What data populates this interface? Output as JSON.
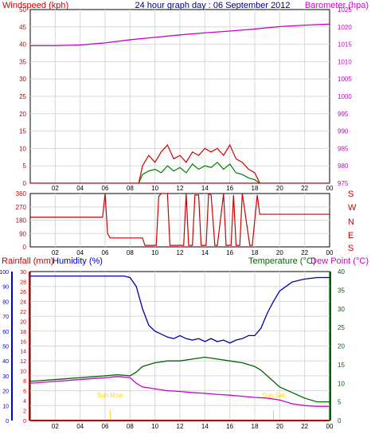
{
  "chart_data": [
    {
      "id": "top",
      "type": "line",
      "title": "24 hour graph day : 06 September 2012",
      "left_axis_label": "Windspeed (kph)",
      "right_axis_label": "Barometer (hpa)",
      "x_ticks": [
        "02",
        "04",
        "06",
        "08",
        "10",
        "12",
        "14",
        "16",
        "18",
        "20",
        "22",
        "00"
      ],
      "left_ylim": [
        0,
        50
      ],
      "left_ticks": [
        "0",
        "5",
        "10",
        "15",
        "20",
        "25",
        "30",
        "35",
        "40",
        "45",
        "50"
      ],
      "right_ylim": [
        975,
        1025
      ],
      "right_ticks": [
        "975",
        "980",
        "985",
        "990",
        "995",
        "1000",
        "1005",
        "1010",
        "1015",
        "1020",
        "1025"
      ],
      "grid": true,
      "series": [
        {
          "role": "barometer",
          "color": "#cc00cc",
          "axis": "right",
          "x": [
            0,
            2,
            4,
            6,
            8,
            10,
            12,
            14,
            16,
            18,
            20,
            22,
            24
          ],
          "y": [
            1014.6,
            1014.6,
            1014.8,
            1015.4,
            1016.3,
            1017.0,
            1017.7,
            1018.3,
            1018.8,
            1019.4,
            1020.1,
            1020.5,
            1020.8
          ]
        },
        {
          "role": "windspeed",
          "color": "#008000",
          "axis": "left",
          "x": [
            8.7,
            9.0,
            9.5,
            10.0,
            10.5,
            11.0,
            11.5,
            12.0,
            12.5,
            13.0,
            13.5,
            14.0,
            14.5,
            15.0,
            15.5,
            16.0,
            16.5,
            17.0,
            17.5,
            18.0,
            18.4
          ],
          "y": [
            0,
            2.5,
            3.5,
            4.0,
            3.0,
            5.0,
            3.5,
            4.5,
            3.0,
            5.5,
            4.0,
            5.0,
            4.5,
            6.0,
            4.0,
            5.5,
            3.0,
            2.5,
            1.5,
            1.0,
            0
          ]
        },
        {
          "role": "gust",
          "color": "#cc0000",
          "axis": "left",
          "x": [
            8.7,
            9.0,
            9.5,
            10.0,
            10.5,
            11.0,
            11.5,
            12.0,
            12.5,
            13.0,
            13.5,
            14.0,
            14.5,
            15.0,
            15.5,
            16.0,
            16.5,
            17.0,
            17.5,
            18.0,
            18.4
          ],
          "y": [
            0,
            5,
            8,
            6,
            9,
            11,
            7,
            8,
            6,
            9,
            8,
            10,
            9,
            10,
            8,
            11,
            7,
            6,
            4,
            3,
            0
          ]
        }
      ]
    },
    {
      "id": "direction",
      "type": "line",
      "x_ticks": [
        "02",
        "04",
        "06",
        "08",
        "10",
        "12",
        "14",
        "16",
        "18",
        "20",
        "22",
        "00"
      ],
      "ylim": [
        0,
        360
      ],
      "left_ticks": [
        "0",
        "90",
        "180",
        "270",
        "360"
      ],
      "right_labels": [
        "S",
        "E",
        "N",
        "W",
        "S"
      ],
      "grid": true,
      "series": [
        {
          "role": "direction",
          "color": "#cc0000",
          "x": [
            0,
            5.8,
            6.0,
            6.2,
            6.4,
            6.7,
            9.0,
            9.2,
            10.1,
            10.3,
            10.5,
            11.0,
            11.2,
            12.3,
            12.5,
            12.7,
            13.0,
            13.2,
            13.5,
            13.7,
            14.1,
            14.3,
            14.5,
            14.8,
            15.0,
            15.5,
            15.7,
            16.1,
            16.3,
            16.5,
            16.8,
            17.0,
            17.6,
            17.8,
            18.2,
            18.4,
            24
          ],
          "y": [
            200,
            200,
            360,
            90,
            60,
            60,
            60,
            10,
            10,
            340,
            360,
            360,
            10,
            10,
            360,
            10,
            10,
            350,
            350,
            10,
            10,
            360,
            350,
            10,
            10,
            360,
            10,
            10,
            350,
            10,
            10,
            360,
            10,
            10,
            350,
            220,
            220
          ]
        }
      ]
    },
    {
      "id": "bottom",
      "type": "line",
      "labels": {
        "rainfall": "Rainfall (mm)",
        "humidity": "Humidity (%)",
        "temperature": "Temperature (°C)",
        "dewpoint": "Dew Point (°C)"
      },
      "x_ticks": [
        "02",
        "04",
        "06",
        "08",
        "10",
        "12",
        "14",
        "16",
        "18",
        "20",
        "22",
        "00"
      ],
      "humidity_ticks": [
        "0",
        "10",
        "20",
        "30",
        "40",
        "50",
        "60",
        "70",
        "80",
        "90",
        "100"
      ],
      "rain_ticks": [
        "0",
        "2",
        "4",
        "6",
        "8",
        "10",
        "12",
        "14",
        "16",
        "18",
        "20",
        "22",
        "24",
        "26",
        "28",
        "30"
      ],
      "temp_ticks": [
        "0",
        "5",
        "10",
        "15",
        "20",
        "25",
        "30",
        "35",
        "40"
      ],
      "humidity_ylim": [
        0,
        100
      ],
      "temp_ylim": [
        0,
        40
      ],
      "annotations": [
        {
          "text": "Sun Rise",
          "x": 6.4,
          "color": "#ffd700"
        },
        {
          "text": "Sun Set",
          "x": 19.5,
          "color": "#ffd700"
        }
      ],
      "series": [
        {
          "role": "humidity",
          "color": "#0000aa",
          "axis": "humidity",
          "x": [
            0,
            2,
            4,
            6,
            7.5,
            8.0,
            8.5,
            9.0,
            9.5,
            10,
            10.5,
            11,
            11.5,
            12,
            12.5,
            13,
            13.5,
            14,
            14.5,
            15,
            15.5,
            16,
            16.5,
            17,
            17.5,
            18,
            18.5,
            19,
            19.5,
            20,
            21,
            22,
            23,
            24
          ],
          "y": [
            97,
            97,
            97,
            97,
            97,
            96,
            90,
            75,
            64,
            60,
            58,
            56,
            55,
            57,
            55,
            54,
            55,
            53,
            55,
            53,
            54,
            52,
            54,
            55,
            57,
            57,
            62,
            72,
            80,
            87,
            93,
            95,
            96,
            96
          ]
        },
        {
          "role": "temperature",
          "color": "#006400",
          "axis": "temp",
          "x": [
            0,
            2,
            4,
            6,
            7,
            8,
            8.5,
            9,
            10,
            11,
            12,
            13,
            14,
            15,
            16,
            17,
            18,
            18.5,
            19,
            19.5,
            20,
            21,
            22,
            23,
            24
          ],
          "y": [
            10.5,
            11,
            11.5,
            12,
            12.3,
            12,
            13,
            14.5,
            15.5,
            16,
            16,
            16.5,
            17,
            16.5,
            16,
            15.5,
            14.5,
            13.5,
            12,
            10.5,
            9,
            7.5,
            6,
            5,
            5
          ]
        },
        {
          "role": "dewpoint",
          "color": "#cc00cc",
          "axis": "temp",
          "x": [
            0,
            2,
            4,
            6,
            7,
            8,
            8.5,
            9,
            10,
            11,
            12,
            13,
            14,
            15,
            16,
            17,
            18,
            19,
            20,
            21,
            22,
            23,
            24
          ],
          "y": [
            10,
            10.5,
            11,
            11.5,
            11.8,
            11.5,
            10,
            9,
            8.5,
            8,
            7.8,
            7.5,
            7.3,
            7,
            6.8,
            6.5,
            6.2,
            6,
            5.5,
            4.5,
            4,
            3.8,
            3.8
          ]
        },
        {
          "role": "rainfall",
          "color": "#cc0000",
          "axis": "rain",
          "x": [
            0,
            24
          ],
          "y": [
            0,
            0
          ]
        }
      ]
    }
  ]
}
